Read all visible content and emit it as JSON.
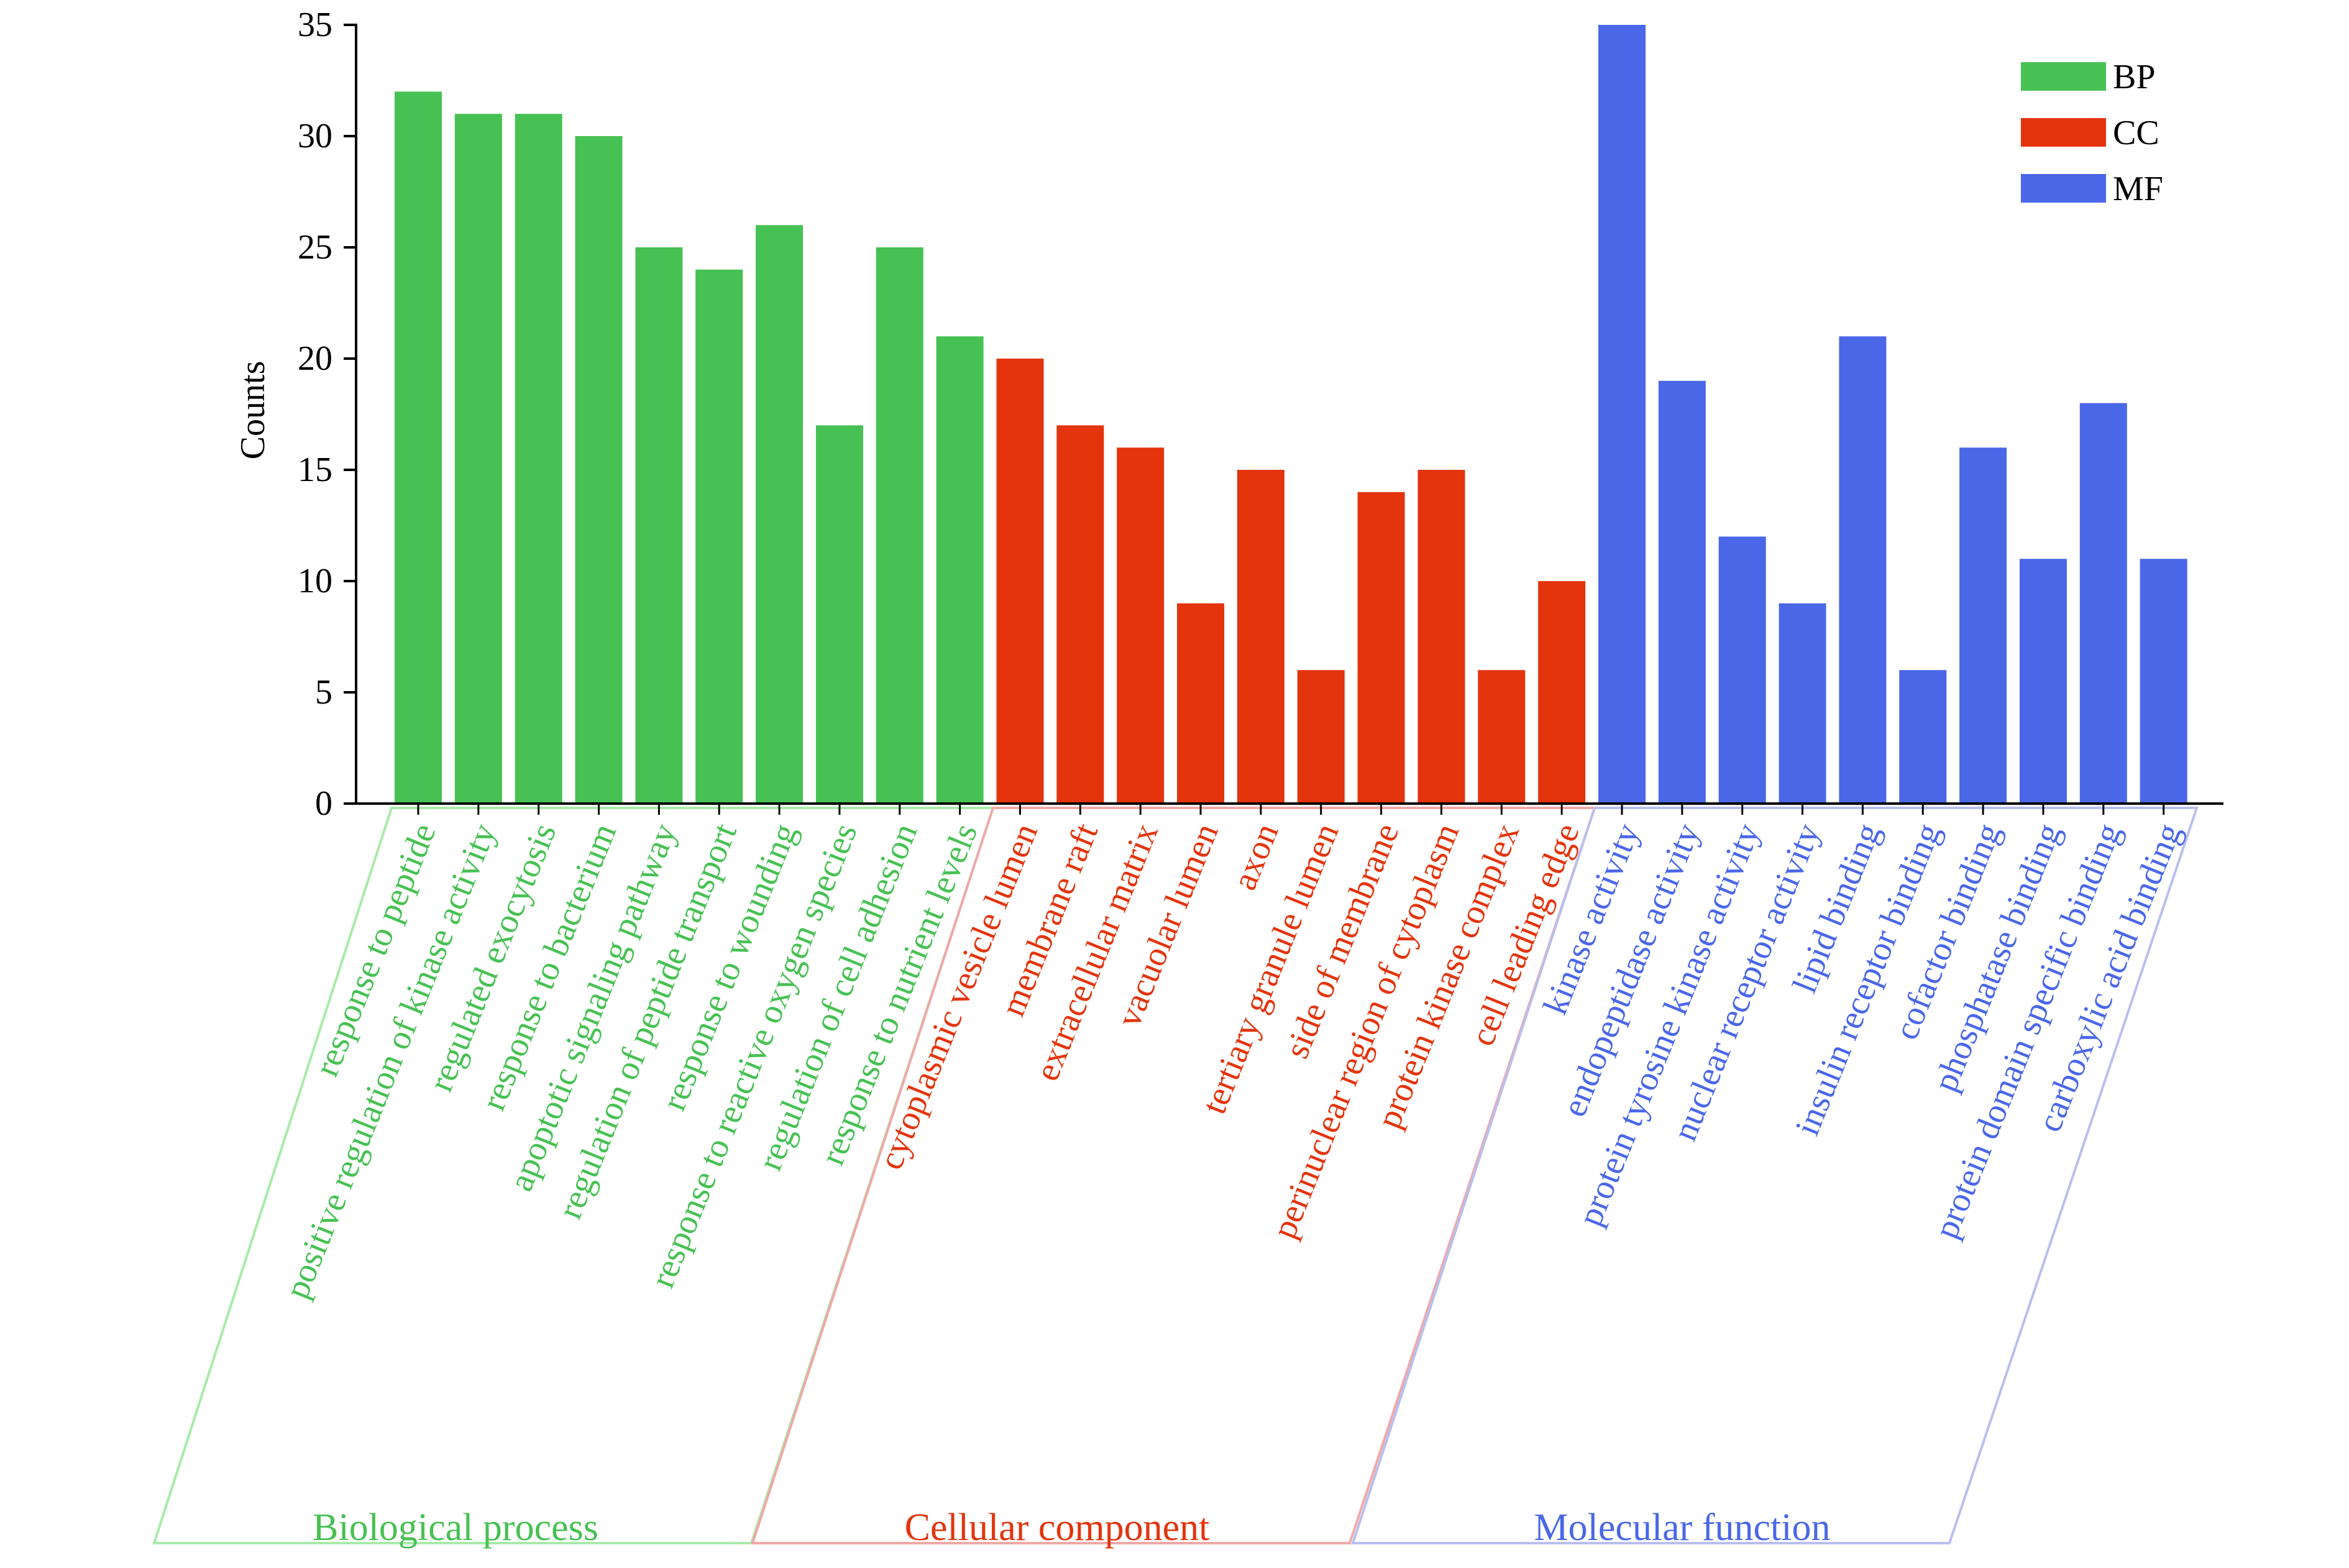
{
  "chart_data": {
    "type": "bar",
    "ylabel": "Counts",
    "xlabel": "",
    "title": "",
    "ylim": [
      0,
      35
    ],
    "yticks": [
      0,
      5,
      10,
      15,
      20,
      25,
      30,
      35
    ],
    "legend": {
      "placement": "top-right",
      "entries": [
        {
          "label": "BP",
          "color": "#47c153"
        },
        {
          "label": "CC",
          "color": "#e3340d"
        },
        {
          "label": "MF",
          "color": "#4a67e8"
        }
      ]
    },
    "groups": [
      {
        "name": "Biological process",
        "short": "BP",
        "color": "#47c153",
        "frame_color": "#a8eaa8",
        "categories": [
          "response to peptide",
          "positive regulation of kinase activity",
          "regulated exocytosis",
          "response to bacterium",
          "apoptotic signaling pathway",
          "regulation of peptide transport",
          "response to wounding",
          "response to reactive oxygen species",
          "regulation of cell adhesion",
          "response to nutrient levels"
        ],
        "values": [
          32,
          31,
          31,
          30,
          25,
          24,
          26,
          17,
          25,
          21
        ]
      },
      {
        "name": "Cellular component",
        "short": "CC",
        "color": "#e3340d",
        "frame_color": "#f0a8a8",
        "categories": [
          "cytoplasmic vesicle lumen",
          "membrane raft",
          "extracellular matrix",
          "vacuolar lumen",
          "axon",
          "tertiary granule lumen",
          "side of membrane",
          "perinuclear region of cytoplasm",
          "protein kinase complex",
          "cell leading edge"
        ],
        "values": [
          20,
          17,
          16,
          9,
          15,
          6,
          14,
          15,
          6,
          10
        ]
      },
      {
        "name": "Molecular function",
        "short": "MF",
        "color": "#4a67e8",
        "frame_color": "#b8bfee",
        "categories": [
          "kinase activity",
          "endopeptidase activity",
          "protein tyrosine kinase activity",
          "nuclear receptor activity",
          "lipid binding",
          "insulin receptor binding",
          "cofactor binding",
          "phosphatase binding",
          "protein domain specific binding",
          "carboxylic acid binding"
        ],
        "values": [
          35,
          19,
          12,
          9,
          21,
          6,
          16,
          11,
          18,
          11
        ]
      }
    ]
  }
}
